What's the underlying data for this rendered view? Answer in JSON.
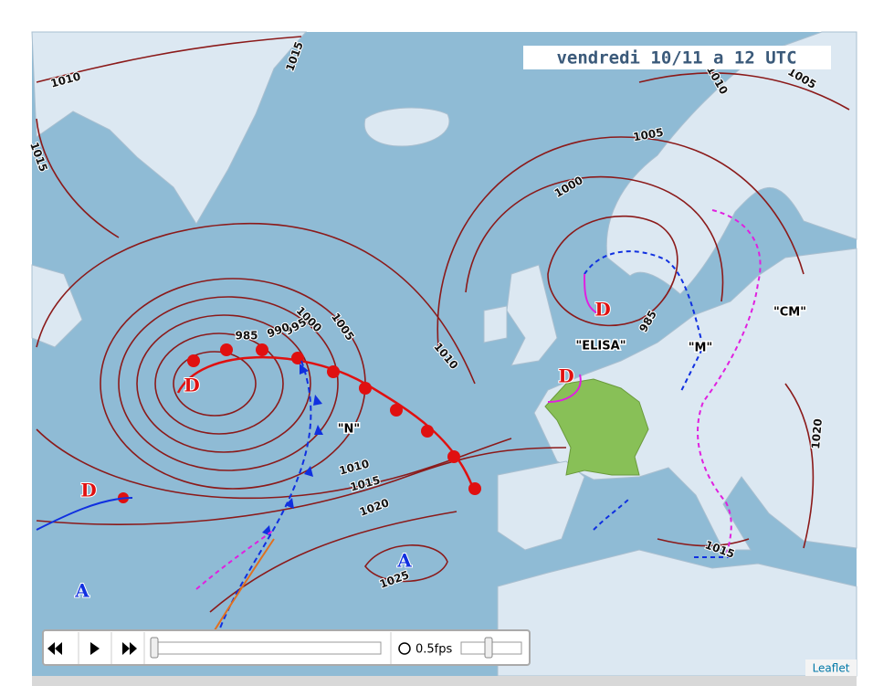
{
  "header": {
    "title": "vendredi 10/11 a 12 UTC"
  },
  "isobar_labels": [
    "1010",
    "1015",
    "1015",
    "1010",
    "1005",
    "1005",
    "1000",
    "1000",
    "1005",
    "995",
    "990",
    "985",
    "985",
    "1010",
    "1010",
    "1015",
    "1020",
    "1025",
    "1015",
    "1020"
  ],
  "pressure_centers": [
    "D",
    "D",
    "D",
    "D",
    "A",
    "A"
  ],
  "front_names": [
    "\"N\"",
    "\"ELISA\"",
    "\"M\"",
    "\"CM\""
  ],
  "controls": {
    "speed": "0.5fps"
  },
  "attribution": "Leaflet"
}
